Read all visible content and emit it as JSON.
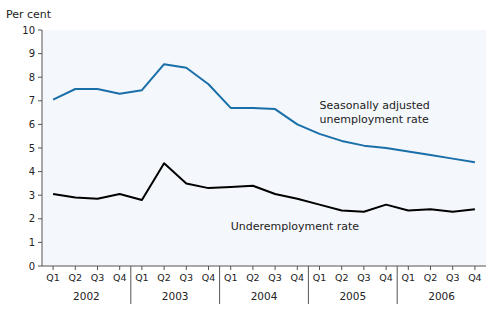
{
  "chart_data": {
    "type": "line",
    "y_label": "Per cent",
    "categories": [
      "Q1",
      "Q2",
      "Q3",
      "Q4",
      "Q1",
      "Q2",
      "Q3",
      "Q4",
      "Q1",
      "Q2",
      "Q3",
      "Q4",
      "Q1",
      "Q2",
      "Q3",
      "Q4",
      "Q1",
      "Q2",
      "Q3",
      "Q4"
    ],
    "x_groups": [
      {
        "label": "2002",
        "size": 4
      },
      {
        "label": "2003",
        "size": 4
      },
      {
        "label": "2004",
        "size": 4
      },
      {
        "label": "2005",
        "size": 4
      },
      {
        "label": "2006",
        "size": 4
      }
    ],
    "series": [
      {
        "name": "Seasonally adjusted\nunemployment rate",
        "color": "#1a6fa8",
        "values": [
          7.05,
          7.5,
          7.5,
          7.3,
          7.45,
          8.55,
          8.4,
          7.7,
          6.7,
          6.7,
          6.65,
          6.0,
          5.6,
          5.3,
          5.1,
          5.0,
          4.85,
          4.7,
          4.55,
          4.4
        ]
      },
      {
        "name": "Underemployment rate",
        "color": "black",
        "values": [
          3.05,
          2.9,
          2.85,
          3.05,
          2.8,
          4.35,
          3.5,
          3.3,
          3.35,
          3.4,
          3.05,
          2.85,
          2.6,
          2.35,
          2.3,
          2.6,
          2.35,
          2.4,
          2.3,
          2.4
        ]
      }
    ],
    "ylim": [
      0,
      10
    ],
    "yticks": [
      0,
      1,
      2,
      3,
      4,
      5,
      6,
      7,
      8,
      9,
      10
    ],
    "grid": false
  }
}
